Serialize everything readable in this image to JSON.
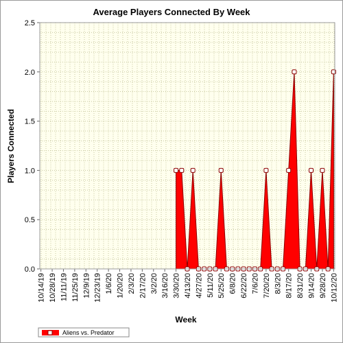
{
  "chart_data": {
    "type": "area",
    "title": "Average Players Connected By Week",
    "xlabel": "Week",
    "ylabel": "Players Connected",
    "ylim": [
      0,
      2.5
    ],
    "yticks": [
      0.0,
      0.5,
      1.0,
      1.5,
      2.0,
      2.5
    ],
    "ytick_labels": [
      "0.0",
      "0.5",
      "1.0",
      "1.5",
      "2.0",
      "2.5"
    ],
    "grid": true,
    "legend_position": "bottom-left",
    "x_tick_labels": [
      "10/14/19",
      "10/28/19",
      "11/11/19",
      "11/25/19",
      "12/9/19",
      "12/23/19",
      "1/6/20",
      "1/20/20",
      "2/3/20",
      "2/17/20",
      "3/2/20",
      "3/16/20",
      "3/30/20",
      "4/13/20",
      "4/27/20",
      "5/11/20",
      "5/25/20",
      "6/8/20",
      "6/22/20",
      "7/6/20",
      "7/20/20",
      "8/3/20",
      "8/17/20",
      "8/31/20",
      "9/14/20",
      "9/28/20",
      "10/12/20"
    ],
    "colors": {
      "series": "#ff0000",
      "outline": "#8b0000",
      "plot_background": "#ffffee",
      "marker_fill": "#ffffff"
    },
    "series": [
      {
        "name": "Aliens vs. Predator",
        "points": [
          {
            "x": "3/30/20",
            "y": 1.0
          },
          {
            "x": "4/6/20",
            "y": 1.0
          },
          {
            "x": "4/13/20",
            "y": 0.0
          },
          {
            "x": "4/20/20",
            "y": 1.0
          },
          {
            "x": "4/27/20",
            "y": 0.0
          },
          {
            "x": "5/4/20",
            "y": 0.0
          },
          {
            "x": "5/11/20",
            "y": 0.0
          },
          {
            "x": "5/18/20",
            "y": 0.0
          },
          {
            "x": "5/25/20",
            "y": 1.0
          },
          {
            "x": "6/1/20",
            "y": 0.0
          },
          {
            "x": "6/8/20",
            "y": 0.0
          },
          {
            "x": "6/15/20",
            "y": 0.0
          },
          {
            "x": "6/22/20",
            "y": 0.0
          },
          {
            "x": "6/29/20",
            "y": 0.0
          },
          {
            "x": "7/6/20",
            "y": 0.0
          },
          {
            "x": "7/13/20",
            "y": 0.0
          },
          {
            "x": "7/20/20",
            "y": 1.0
          },
          {
            "x": "7/27/20",
            "y": 0.0
          },
          {
            "x": "8/3/20",
            "y": 0.0
          },
          {
            "x": "8/10/20",
            "y": 0.0
          },
          {
            "x": "8/17/20",
            "y": 1.0
          },
          {
            "x": "8/24/20",
            "y": 2.0
          },
          {
            "x": "8/31/20",
            "y": 0.0
          },
          {
            "x": "9/7/20",
            "y": 0.0
          },
          {
            "x": "9/14/20",
            "y": 1.0
          },
          {
            "x": "9/21/20",
            "y": 0.0
          },
          {
            "x": "9/28/20",
            "y": 1.0
          },
          {
            "x": "10/5/20",
            "y": 0.0
          },
          {
            "x": "10/12/20",
            "y": 2.0
          }
        ]
      }
    ]
  }
}
